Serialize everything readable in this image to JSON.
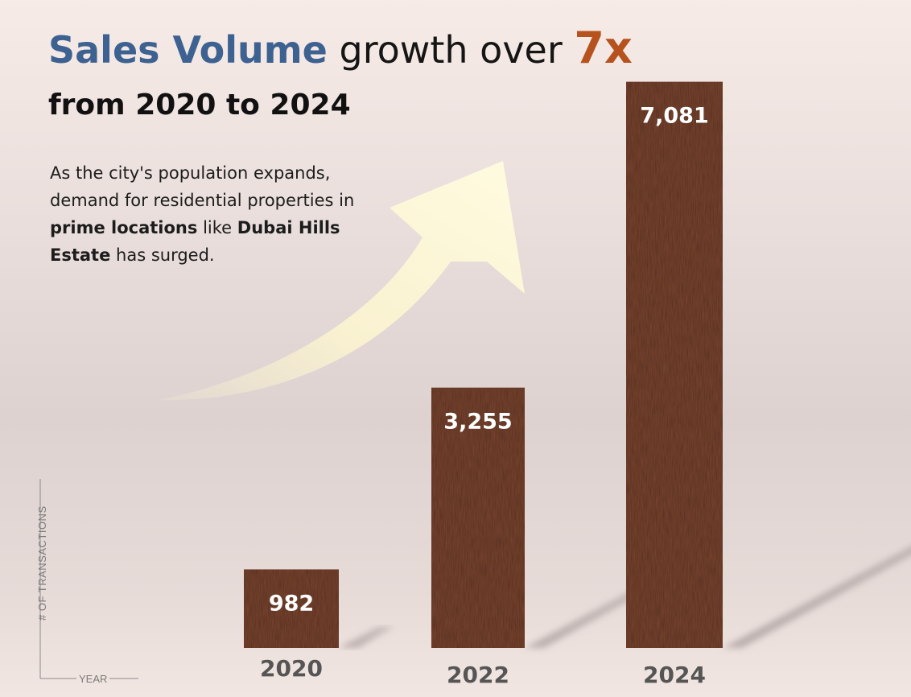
{
  "title": {
    "part1": "Sales Volume",
    "part2": "growth over",
    "part3": "7x",
    "line2_prefix": "from",
    "line2_bold": "2020 to 2024"
  },
  "description": {
    "text1": "As the city's population expands, demand for residential properties in",
    "bold1": "prime locations",
    "text2": "like",
    "bold2": "Dubai Hills Estate",
    "text3": "has surged."
  },
  "colors": {
    "title_blue": "#3d6291",
    "accent_orange": "#b6521e",
    "bar_brown": "#7a4530",
    "arrow_fill": "#fdf6cf",
    "label_gray": "#555555"
  },
  "chart_data": {
    "type": "bar",
    "categories": [
      "2020",
      "2022",
      "2024"
    ],
    "values": [
      982,
      3255,
      7081
    ],
    "data_labels": [
      "982",
      "3,255",
      "7,081"
    ],
    "xlabel": "YEAR",
    "ylabel": "# OF TRANSACTIONS",
    "ylim": [
      0,
      7500
    ],
    "grid": false,
    "legend": "none",
    "decoration": "upward-curved-arrow"
  }
}
